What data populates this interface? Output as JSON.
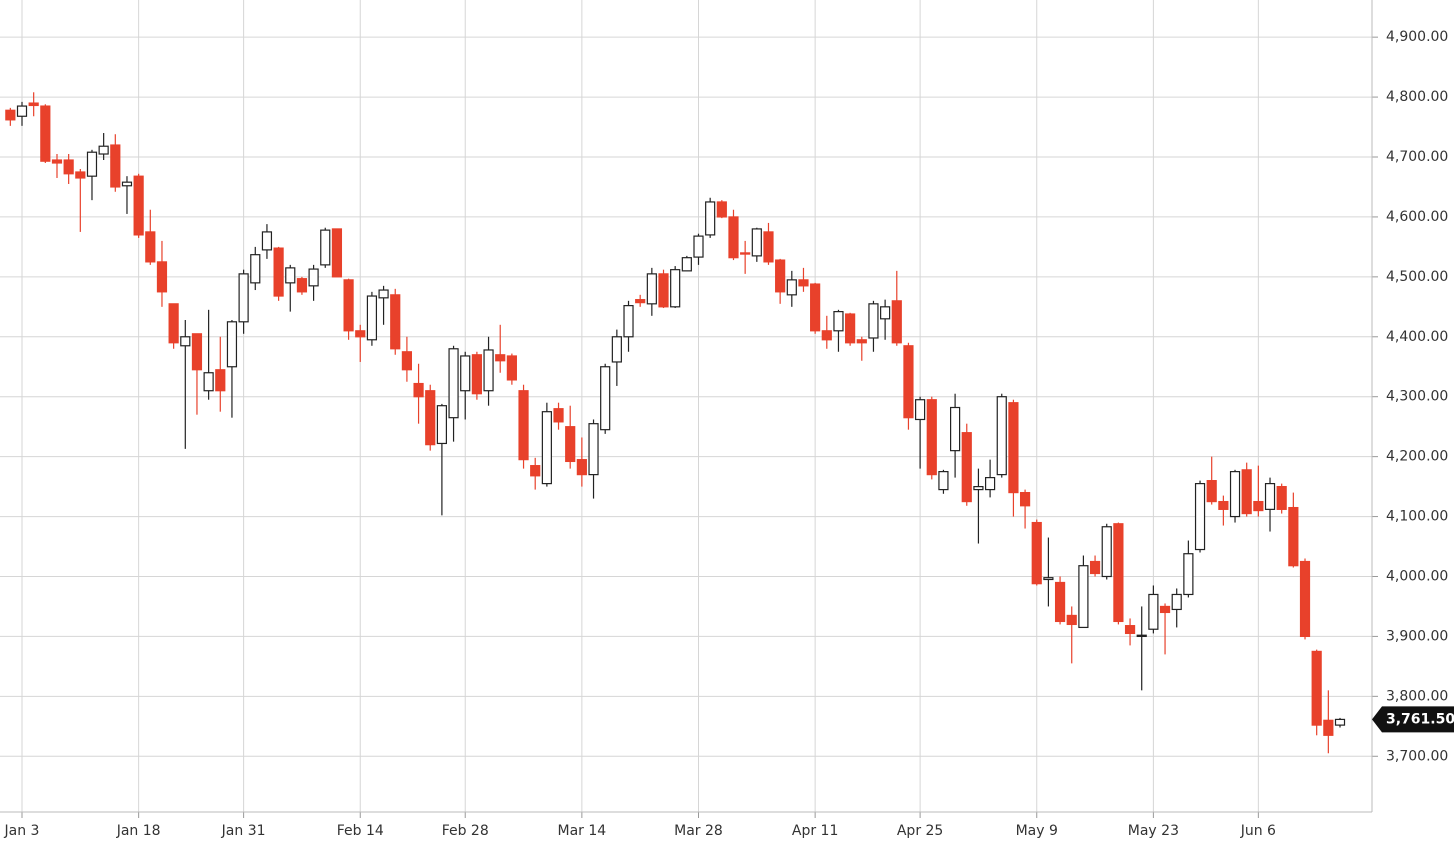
{
  "chart_data": {
    "type": "candlestick",
    "categories": [
      null,
      "Jan 3",
      null,
      null,
      null,
      null,
      null,
      null,
      null,
      null,
      null,
      "Jan 18",
      null,
      null,
      null,
      null,
      null,
      null,
      null,
      null,
      "Jan 31",
      null,
      null,
      null,
      null,
      null,
      null,
      null,
      null,
      null,
      "Feb 14",
      null,
      null,
      null,
      null,
      null,
      null,
      null,
      null,
      "Feb 28",
      null,
      null,
      null,
      null,
      null,
      null,
      null,
      null,
      null,
      "Mar 14",
      null,
      null,
      null,
      null,
      null,
      null,
      null,
      null,
      null,
      "Mar 28",
      null,
      null,
      null,
      null,
      null,
      null,
      null,
      null,
      null,
      "Apr 11",
      null,
      null,
      null,
      null,
      null,
      null,
      null,
      null,
      "Apr 25",
      null,
      null,
      null,
      null,
      null,
      null,
      null,
      null,
      null,
      "May 9",
      null,
      null,
      null,
      null,
      null,
      null,
      null,
      null,
      null,
      "May 23",
      null,
      null,
      null,
      null,
      null,
      null,
      null,
      null,
      "Jun 6",
      null,
      null,
      null,
      null,
      null,
      null,
      null
    ],
    "open": [
      4778,
      4768,
      4790,
      4785,
      4695,
      4695,
      4675,
      4668,
      4705,
      4720,
      4652,
      4668,
      4575,
      4525,
      4455,
      4385,
      4405,
      4310,
      4345,
      4350,
      4425,
      4490,
      4545,
      4548,
      4490,
      4497,
      4485,
      4520,
      4580,
      4495,
      4410,
      4395,
      4465,
      4470,
      4375,
      4322,
      4310,
      4222,
      4265,
      4310,
      4370,
      4310,
      4370,
      4368,
      4310,
      4185,
      4155,
      4280,
      4250,
      4195,
      4170,
      4245,
      4358,
      4400,
      4462,
      4455,
      4505,
      4450,
      4510,
      4533,
      4570,
      4625,
      4600,
      4540,
      4535,
      4575,
      4528,
      4470,
      4495,
      4488,
      4410,
      4410,
      4438,
      4395,
      4398,
      4430,
      4460,
      4385,
      4262,
      4295,
      4145,
      4210,
      4240,
      4145,
      4145,
      4170,
      4290,
      4140,
      4090,
      3995,
      3990,
      3935,
      3915,
      4025,
      4000,
      4088,
      3918,
      3900,
      3912,
      3950,
      3945,
      3970,
      4045,
      4160,
      4125,
      4100,
      4178,
      4125,
      4112,
      4150,
      4115,
      4025,
      3875,
      3760,
      3752
    ],
    "high": [
      4782,
      4792,
      4808,
      4788,
      4705,
      4705,
      4680,
      4712,
      4740,
      4738,
      4668,
      4672,
      4612,
      4560,
      4455,
      4428,
      4405,
      4445,
      4400,
      4428,
      4512,
      4550,
      4588,
      4550,
      4520,
      4500,
      4520,
      4582,
      4580,
      4497,
      4420,
      4475,
      4485,
      4480,
      4400,
      4355,
      4320,
      4288,
      4385,
      4375,
      4375,
      4400,
      4420,
      4372,
      4320,
      4198,
      4290,
      4290,
      4285,
      4232,
      4262,
      4355,
      4412,
      4460,
      4470,
      4515,
      4512,
      4518,
      4535,
      4572,
      4632,
      4628,
      4612,
      4560,
      4582,
      4590,
      4530,
      4510,
      4515,
      4490,
      4435,
      4445,
      4440,
      4400,
      4460,
      4462,
      4510,
      4390,
      4300,
      4300,
      4178,
      4305,
      4255,
      4180,
      4195,
      4305,
      4295,
      4145,
      4095,
      4065,
      4000,
      3950,
      4035,
      4035,
      4088,
      4090,
      3930,
      3950,
      3985,
      3955,
      3980,
      4060,
      4160,
      4200,
      4135,
      4178,
      4190,
      4185,
      4165,
      4155,
      4140,
      4030,
      3878,
      3810,
      3764
    ],
    "low": [
      4752,
      4752,
      4768,
      4690,
      4665,
      4655,
      4575,
      4628,
      4695,
      4642,
      4605,
      4565,
      4520,
      4450,
      4380,
      4213,
      4270,
      4295,
      4275,
      4265,
      4405,
      4478,
      4530,
      4460,
      4442,
      4470,
      4460,
      4515,
      4500,
      4395,
      4358,
      4385,
      4420,
      4370,
      4325,
      4255,
      4210,
      4102,
      4225,
      4262,
      4295,
      4285,
      4340,
      4320,
      4180,
      4145,
      4150,
      4245,
      4180,
      4150,
      4130,
      4238,
      4318,
      4375,
      4450,
      4435,
      4448,
      4448,
      4515,
      4520,
      4565,
      4598,
      4528,
      4505,
      4525,
      4520,
      4455,
      4450,
      4475,
      4405,
      4380,
      4375,
      4385,
      4360,
      4375,
      4395,
      4385,
      4245,
      4180,
      4162,
      4138,
      4165,
      4118,
      4055,
      4132,
      4165,
      4100,
      4080,
      3985,
      3950,
      3920,
      3855,
      3915,
      4000,
      3995,
      3920,
      3885,
      3810,
      3905,
      3870,
      3915,
      3965,
      4040,
      4120,
      4085,
      4090,
      4100,
      4100,
      4075,
      4105,
      4015,
      3895,
      3735,
      3705,
      3748
    ],
    "close": [
      4762,
      4785,
      4786,
      4693,
      4690,
      4672,
      4665,
      4708,
      4718,
      4650,
      4658,
      4570,
      4525,
      4475,
      4390,
      4400,
      4345,
      4340,
      4310,
      4425,
      4505,
      4537,
      4575,
      4468,
      4515,
      4475,
      4513,
      4578,
      4500,
      4410,
      4400,
      4468,
      4478,
      4380,
      4345,
      4300,
      4220,
      4285,
      4380,
      4368,
      4305,
      4378,
      4360,
      4328,
      4195,
      4168,
      4275,
      4258,
      4192,
      4170,
      4255,
      4350,
      4400,
      4452,
      4457,
      4505,
      4450,
      4512,
      4532,
      4568,
      4625,
      4600,
      4532,
      4538,
      4580,
      4525,
      4475,
      4495,
      4485,
      4410,
      4395,
      4442,
      4390,
      4390,
      4455,
      4450,
      4390,
      4265,
      4295,
      4170,
      4175,
      4282,
      4125,
      4150,
      4165,
      4300,
      4140,
      4118,
      3988,
      3998,
      3925,
      3920,
      4018,
      4005,
      4083,
      3925,
      3905,
      3902,
      3970,
      3940,
      3970,
      4038,
      4155,
      4125,
      4112,
      4175,
      4105,
      4110,
      4155,
      4112,
      4018,
      3900,
      3752,
      3735,
      3761.5
    ],
    "up_color": "#ffffff",
    "down_color": "#e8412b",
    "ylim": [
      3607,
      4962
    ],
    "yticks": [
      {
        "value": 3700,
        "label": "3,700.00"
      },
      {
        "value": 3800,
        "label": "3,800.00"
      },
      {
        "value": 3900,
        "label": "3,900.00"
      },
      {
        "value": 4000,
        "label": "4,000.00"
      },
      {
        "value": 4100,
        "label": "4,100.00"
      },
      {
        "value": 4200,
        "label": "4,200.00"
      },
      {
        "value": 4300,
        "label": "4,300.00"
      },
      {
        "value": 4400,
        "label": "4,400.00"
      },
      {
        "value": 4500,
        "label": "4,500.00"
      },
      {
        "value": 4600,
        "label": "4,600.00"
      },
      {
        "value": 4700,
        "label": "4,700.00"
      },
      {
        "value": 4800,
        "label": "4,800.00"
      },
      {
        "value": 4900,
        "label": "4,900.00"
      }
    ],
    "last_price": {
      "value": 3761.5,
      "label": "3,761.50"
    },
    "grid": true
  }
}
